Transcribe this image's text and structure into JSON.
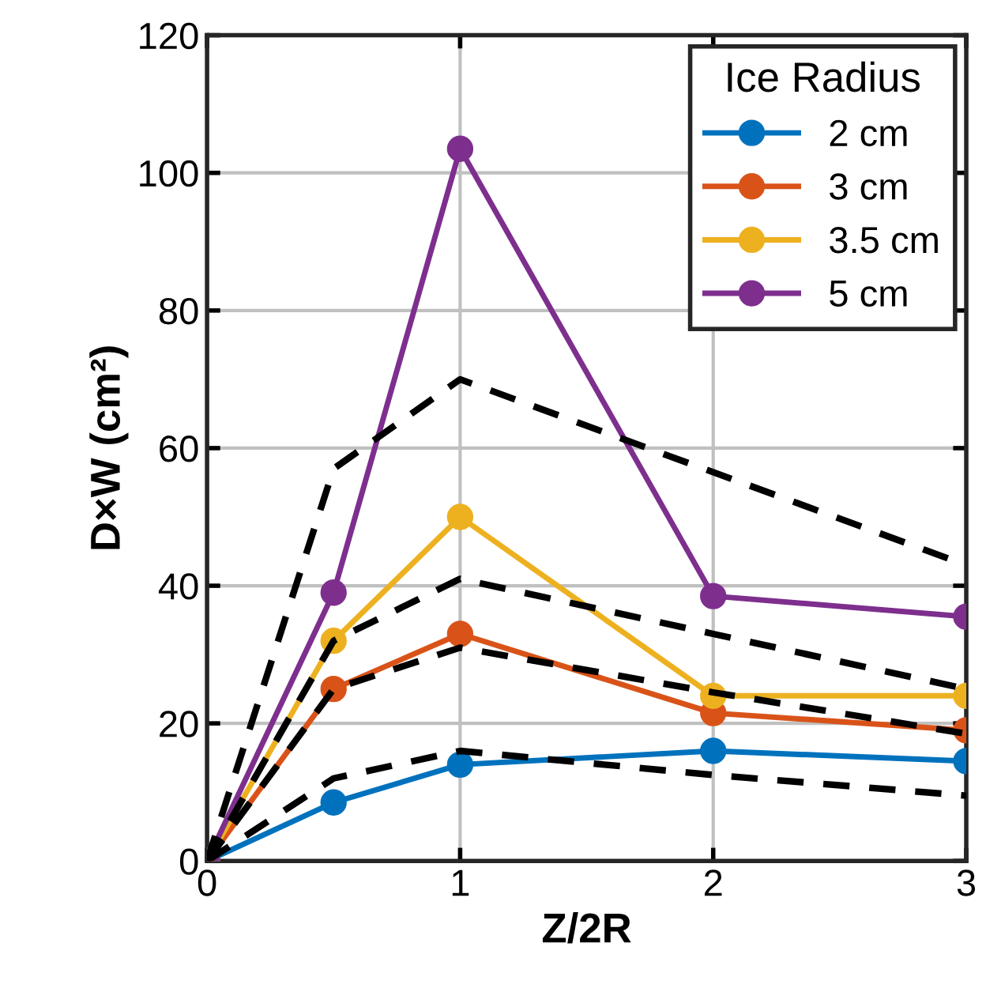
{
  "chart_data": {
    "type": "line",
    "xlabel": "Z/2R",
    "ylabel": "D×W (cm²)",
    "legend_title": "Ice Radius",
    "legend": "top right",
    "grid": true,
    "marker": "circle",
    "line_style": "solid",
    "x": [
      0,
      0.5,
      1,
      2,
      3
    ],
    "xlim": [
      0,
      3
    ],
    "xticks": [
      0,
      1,
      2,
      3
    ],
    "ylim": [
      0,
      120
    ],
    "yticks": [
      0,
      20,
      40,
      60,
      80,
      100,
      120
    ],
    "series": [
      {
        "name": "2 cm",
        "color": "#0072bd",
        "values": [
          0,
          8.5,
          14,
          16,
          14.5
        ]
      },
      {
        "name": "3 cm",
        "color": "#d95319",
        "values": [
          0,
          25,
          33,
          21.5,
          19
        ]
      },
      {
        "name": "3.5 cm",
        "color": "#edb120",
        "values": [
          0,
          32,
          50,
          24,
          24
        ]
      },
      {
        "name": "5 cm",
        "color": "#7e2f8e",
        "values": [
          0,
          39,
          103.5,
          38.5,
          35.5
        ]
      },
      {
        "color": "#000000",
        "line_style": "dashed",
        "marker": "none",
        "values": [
          0,
          57,
          70,
          56.5,
          43
        ]
      },
      {
        "color": "#000000",
        "line_style": "dashed",
        "marker": "none",
        "values": [
          0,
          32,
          41,
          33,
          25
        ]
      },
      {
        "color": "#000000",
        "line_style": "dashed",
        "marker": "none",
        "values": [
          0,
          25,
          31,
          24.5,
          18.5
        ]
      },
      {
        "color": "#000000",
        "line_style": "dashed",
        "marker": "none",
        "values": [
          0,
          12,
          16,
          12.5,
          9.5
        ]
      }
    ]
  }
}
